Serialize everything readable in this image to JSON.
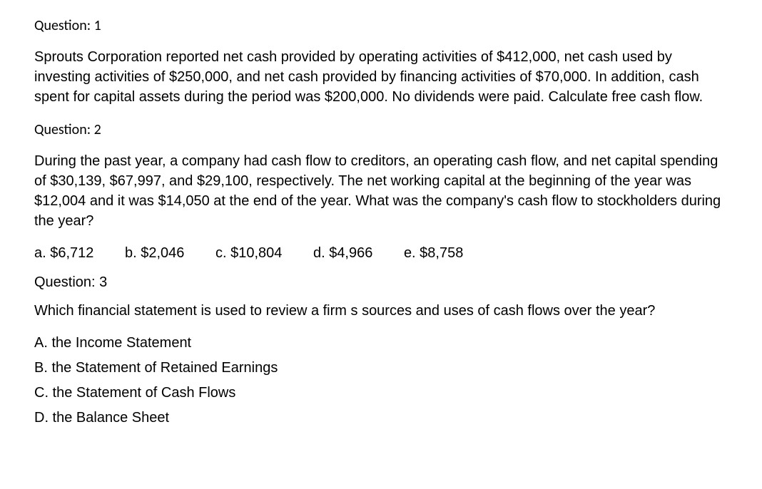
{
  "q1": {
    "label": "Question: 1",
    "body": "Sprouts Corporation reported net cash provided by operating activities of $412,000, net cash used by investing activities of $250,000, and net cash provided by financing activities of $70,000. In addition, cash spent for capital assets during the period was $200,000. No dividends were paid. Calculate free cash flow."
  },
  "q2": {
    "label": "Question: 2",
    "body": "During the past year, a company had cash flow to creditors, an operating cash flow, and net capital spending of $30,139, $67,997, and $29,100, respectively. The net working capital at the beginning of the year was $12,004 and it was $14,050 at the end of the year. What was the company's cash flow to stockholders during the year?",
    "options": {
      "a": "a. $6,712",
      "b": "b. $2,046",
      "c": "c. $10,804",
      "d": "d. $4,966",
      "e": "e. $8,758"
    }
  },
  "q3": {
    "label": "Question: 3",
    "body": "Which financial statement is used to review a firm s sources and uses of cash flows over the year?",
    "options": {
      "a": "A. the Income Statement",
      "b": "B. the Statement of Retained Earnings",
      "c": "C. the Statement of Cash Flows",
      "d": "D. the Balance Sheet"
    }
  }
}
